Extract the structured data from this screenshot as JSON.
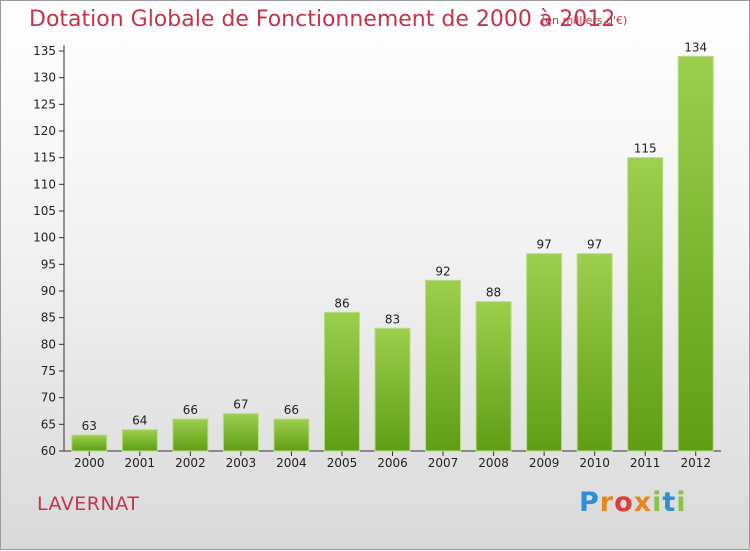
{
  "chart_data": {
    "type": "bar",
    "title": "Dotation Globale de Fonctionnement de 2000 à 2012",
    "subtitle": "(en milliers d'€)",
    "categories": [
      "2000",
      "2001",
      "2002",
      "2003",
      "2004",
      "2005",
      "2006",
      "2007",
      "2008",
      "2009",
      "2010",
      "2011",
      "2012"
    ],
    "values": [
      63,
      64,
      66,
      67,
      66,
      86,
      83,
      92,
      88,
      97,
      97,
      115,
      134
    ],
    "ylim": [
      60,
      135
    ],
    "yticks": [
      60,
      65,
      70,
      75,
      80,
      85,
      90,
      95,
      100,
      105,
      110,
      115,
      120,
      125,
      130,
      135
    ],
    "grid": false,
    "bar_color_top": "#9ccf4e",
    "bar_color_bottom": "#5f9e14"
  },
  "footer": {
    "commune": "LAVERNAT",
    "logo_letters": [
      "P",
      "r",
      "o",
      "x",
      "i",
      "t",
      "i"
    ],
    "logo_colors": [
      "#2e8fd6",
      "#e8871e",
      "#e03a3a",
      "#e8871e",
      "#8bc34a",
      "#2e8fd6",
      "#8bc34a"
    ]
  }
}
